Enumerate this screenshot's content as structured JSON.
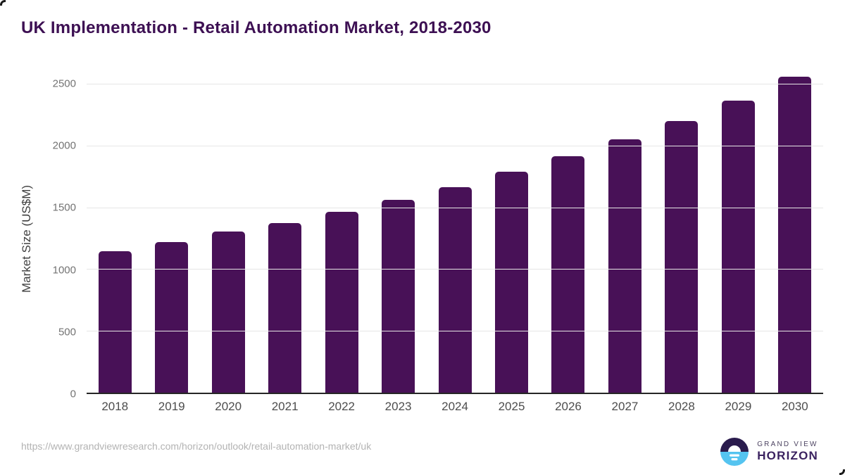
{
  "header": {
    "title": "UK Implementation - Retail Automation Market, 2018-2030"
  },
  "chart_data": {
    "type": "bar",
    "title": "UK Implementation - Retail Automation Market, 2018-2030",
    "categories": [
      "2018",
      "2019",
      "2020",
      "2021",
      "2022",
      "2023",
      "2024",
      "2025",
      "2026",
      "2027",
      "2028",
      "2029",
      "2030"
    ],
    "values": [
      1145,
      1220,
      1305,
      1375,
      1465,
      1560,
      1665,
      1790,
      1915,
      2050,
      2200,
      2365,
      2555
    ],
    "xlabel": "",
    "ylabel": "Market Size (US$M)",
    "ylim": [
      0,
      2500
    ],
    "yticks": [
      0,
      500,
      1000,
      1500,
      2000,
      2500
    ],
    "grid": true,
    "legend": false,
    "bar_color": "#481157",
    "gridline_color": "#e6e6e6",
    "axis_line_color": "#262626"
  },
  "footer": {
    "source_url": "https://www.grandviewresearch.com/horizon/outlook/retail-automation-market/uk"
  },
  "logo": {
    "top_text": "GRAND VIEW",
    "bottom_text": "HORIZON",
    "circle_top_color": "#2a1b4d",
    "circle_bottom_color": "#55c4f0",
    "text_color": "#3b2260"
  }
}
